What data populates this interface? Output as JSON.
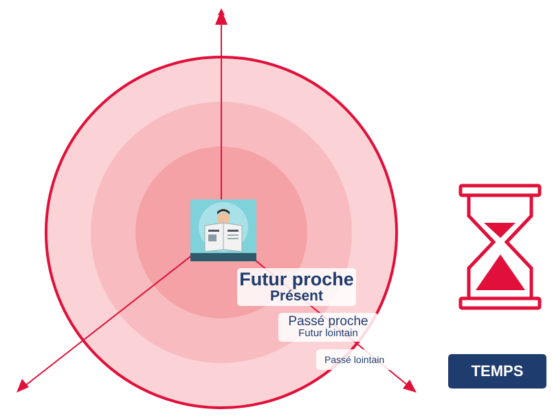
{
  "labels": {
    "near": {
      "primary": "Futur proche",
      "secondary": "Présent"
    },
    "middle": {
      "primary": "Passé proche",
      "secondary": "Futur lointain"
    },
    "far": {
      "primary": "Passé lointain"
    }
  },
  "button": {
    "label": "TEMPS"
  }
}
